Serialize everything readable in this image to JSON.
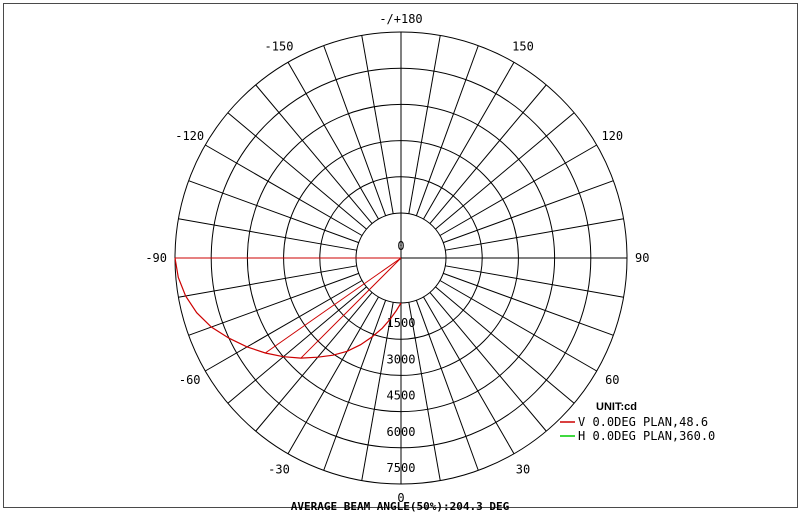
{
  "chart_data": {
    "type": "polar",
    "angle_labels": [
      {
        "angle": 180,
        "text": "-/+180"
      },
      {
        "angle": -150,
        "text": "-150"
      },
      {
        "angle": 150,
        "text": "150"
      },
      {
        "angle": -120,
        "text": "-120"
      },
      {
        "angle": 120,
        "text": "120"
      },
      {
        "angle": -90,
        "text": "-90"
      },
      {
        "angle": 90,
        "text": "90"
      },
      {
        "angle": -60,
        "text": "-60"
      },
      {
        "angle": 60,
        "text": "60"
      },
      {
        "angle": -30,
        "text": "-30"
      },
      {
        "angle": 30,
        "text": "30"
      },
      {
        "angle": 0,
        "text": "0"
      }
    ],
    "radial_ticks": [
      0,
      1500,
      3000,
      4500,
      6000,
      7500
    ],
    "radial_tick_labels": [
      "0",
      "1500",
      "3000",
      "4500",
      "6000",
      "7500"
    ],
    "rlim": [
      0,
      7500
    ],
    "unit_label": "UNIT:cd",
    "series": [
      {
        "name": "V 0.0DEG PLAN,48.6",
        "color": "#cc0000",
        "angles": [
          -90,
          -85,
          -80,
          -75,
          -70,
          -65,
          -60,
          -55,
          -50,
          -45,
          -40,
          -35,
          -30,
          -25,
          -20,
          -15,
          -10,
          -5,
          0
        ],
        "values": [
          7500,
          7400,
          7200,
          6900,
          6500,
          6000,
          5500,
          5000,
          4500,
          4000,
          3500,
          3050,
          2600,
          2100,
          1600,
          1150,
          700,
          320,
          0
        ]
      },
      {
        "name": "H 0.0DEG PLAN,360.0",
        "color": "#00cc00",
        "angles": [],
        "values": []
      }
    ],
    "footer": "AVERAGE BEAM ANGLE(50%):204.3 DEG"
  }
}
